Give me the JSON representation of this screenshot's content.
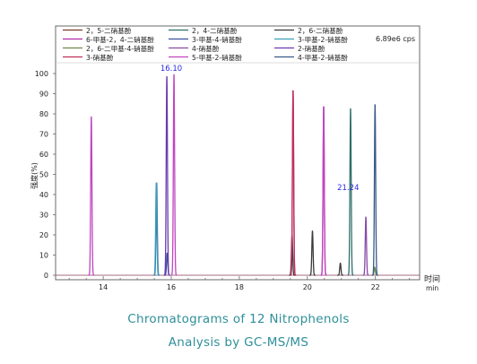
{
  "chart_data": {
    "type": "line",
    "title": "",
    "xlabel": "时间",
    "xunit": "min",
    "ylabel": "强度(%)",
    "intensity_label": "6.89e6 cps",
    "xlim": [
      12.6,
      23.3
    ],
    "ylim": [
      0,
      100
    ],
    "x_ticks": [
      14,
      16,
      18,
      20,
      22
    ],
    "y_ticks": [
      0,
      10,
      20,
      30,
      40,
      50,
      60,
      70,
      80,
      90,
      100
    ],
    "grid": false,
    "legend_position": "top",
    "annotations": [
      {
        "text": "16.10",
        "x": 16.0,
        "y": 100
      },
      {
        "text": "21.24",
        "x": 21.2,
        "y": 41
      }
    ],
    "series": [
      {
        "name": "2，5-二硝基酚",
        "color": "#7a3a2a",
        "peaks": []
      },
      {
        "name": "2，4-二硝基酚",
        "color": "#2f6f6a",
        "peaks": [
          [
            21.27,
            83
          ]
        ]
      },
      {
        "name": "2，6-二硝基酚",
        "color": "#3a3a3a",
        "peaks": [
          [
            19.55,
            20
          ],
          [
            20.15,
            22
          ],
          [
            20.97,
            6
          ]
        ]
      },
      {
        "name": "6-甲基-2，4-二硝基酚",
        "color": "#b02aa8",
        "peaks": [
          [
            19.58,
            92
          ],
          [
            20.48,
            84
          ]
        ]
      },
      {
        "name": "3-甲基-4-硝基酚",
        "color": "#3a4f9e",
        "peaks": [
          [
            15.88,
            11
          ],
          [
            15.57,
            46
          ]
        ]
      },
      {
        "name": "3-甲基-2-硝基酚",
        "color": "#3aa0b8",
        "peaks": [
          [
            15.56,
            46
          ]
        ]
      },
      {
        "name": "2，6-二甲基-4-硝基酚",
        "color": "#6a8a4a",
        "peaks": [
          [
            21.98,
            4
          ]
        ]
      },
      {
        "name": "4-硝基酚",
        "color": "#8a4aa8",
        "peaks": [
          [
            21.72,
            29
          ]
        ]
      },
      {
        "name": "2-硝基酚",
        "color": "#6a3ab0",
        "peaks": [
          [
            15.87,
            99
          ]
        ]
      },
      {
        "name": "3-硝基酚",
        "color": "#c0305a",
        "peaks": [
          [
            19.58,
            92
          ]
        ]
      },
      {
        "name": "5-甲基-2-硝基酚",
        "color": "#c045c0",
        "peaks": [
          [
            13.65,
            79
          ],
          [
            16.08,
            100
          ],
          [
            20.48,
            84
          ]
        ]
      },
      {
        "name": "4-甲基-2-硝基酚",
        "color": "#3a5a8a",
        "peaks": [
          [
            21.99,
            85
          ]
        ]
      }
    ]
  },
  "caption": {
    "line1": "Chromatograms of 12 Nitrophenols",
    "line2": "Analysis by GC-MS/MS"
  }
}
